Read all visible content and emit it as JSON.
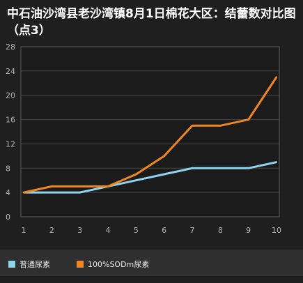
{
  "title": "中石油沙湾县老沙湾镇8月1日棉花大区：结蕾数对比图（点3）",
  "chart_data": {
    "type": "line",
    "title": "中石油沙湾县老沙湾镇8月1日棉花大区：结蕾数对比图（点3）",
    "xlabel": "",
    "ylabel": "",
    "x": [
      1,
      2,
      3,
      4,
      5,
      6,
      7,
      8,
      9,
      10
    ],
    "x_tick_labels": [
      "1",
      "2",
      "3",
      "4",
      "5",
      "6",
      "7",
      "8",
      "9",
      "10"
    ],
    "ylim": [
      0,
      28
    ],
    "y_ticks": [
      0,
      4,
      8,
      12,
      16,
      20,
      24,
      28
    ],
    "grid": true,
    "legend_position": "bottom",
    "series": [
      {
        "name": "普通尿素",
        "color": "#8fd3ef",
        "values": [
          4,
          4,
          4,
          5,
          6,
          7,
          8,
          8,
          8,
          9
        ]
      },
      {
        "name": "100%SODm尿素",
        "color": "#f0861f",
        "values": [
          4,
          5,
          5,
          5,
          7,
          10,
          15,
          15,
          16,
          23
        ]
      }
    ]
  }
}
